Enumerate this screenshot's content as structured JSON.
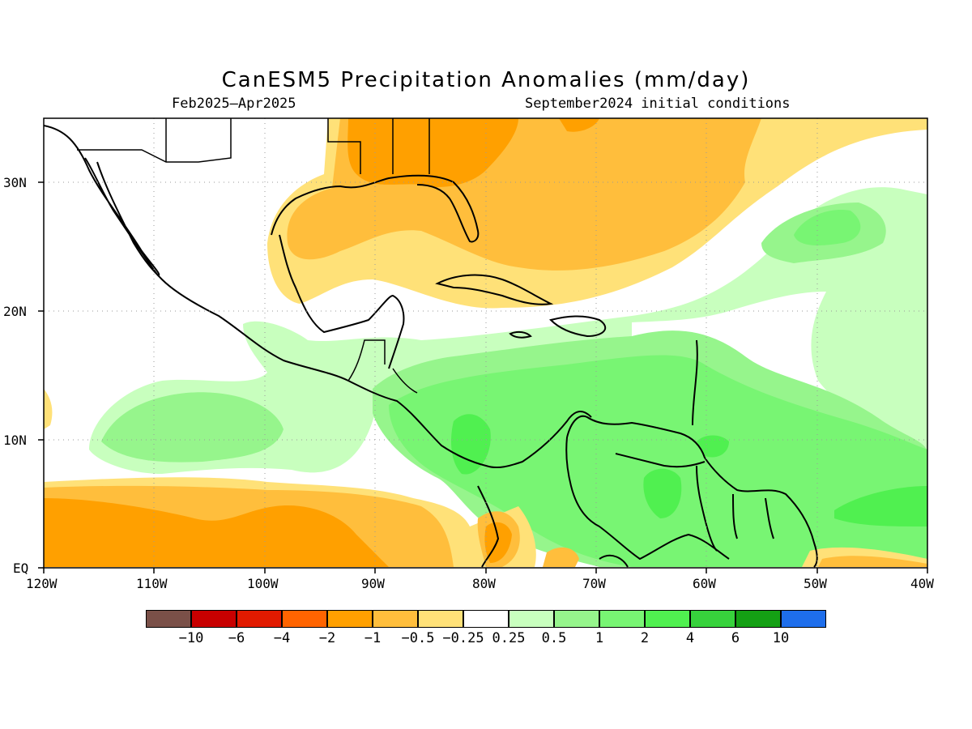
{
  "title": "CanESM5 Precipitation Anomalies (mm/day)",
  "subtitle_left": "Feb2025–Apr2025",
  "subtitle_right": "September2024 initial conditions",
  "map": {
    "lon_range": [
      -120,
      -40
    ],
    "lat_range": [
      0,
      35
    ],
    "x_ticks": [
      "120W",
      "110W",
      "100W",
      "90W",
      "80W",
      "70W",
      "60W",
      "50W",
      "40W"
    ],
    "y_ticks": [
      "EQ",
      "10N",
      "20N",
      "30N"
    ],
    "grid": "dotted"
  },
  "legend": {
    "colors": [
      "#7a5048",
      "#c80000",
      "#e11a00",
      "#ff6400",
      "#ffa000",
      "#ffbe3c",
      "#ffe178",
      "#ffffff",
      "#c8ffbe",
      "#96f58c",
      "#78f573",
      "#50f050",
      "#37d23c",
      "#14a014",
      "#1e6eeb"
    ],
    "labels": [
      "−10",
      "−6",
      "−4",
      "−2",
      "−1",
      "−0.5",
      "−0.25",
      "0.25",
      "0.5",
      "1",
      "2",
      "4",
      "6",
      "10"
    ]
  }
}
